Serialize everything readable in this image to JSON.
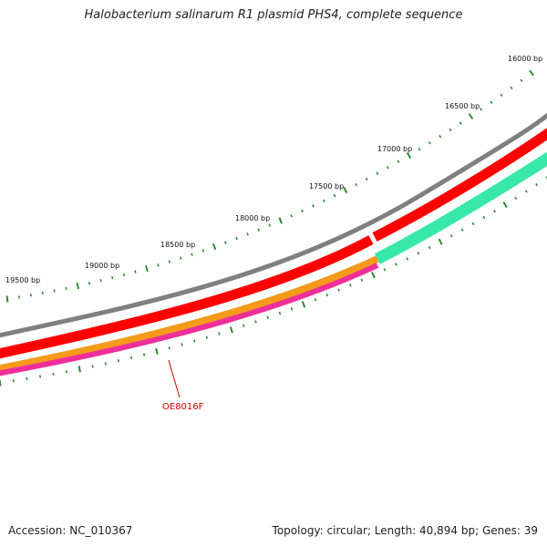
{
  "title": "Halobacterium salinarum R1 plasmid PHS4, complete sequence",
  "footer": {
    "accession": "Accession: NC_010367",
    "summary": "Topology: circular; Length: 40,894 bp; Genes: 39"
  },
  "map": {
    "topology": "circular",
    "length_bp": 40894,
    "gene_count": 39,
    "tick_labels": [
      "16000 bp",
      "16500 bp",
      "17000 bp",
      "17500 bp",
      "18000 bp",
      "18500 bp",
      "19000 bp",
      "19500 bp"
    ],
    "gene_labels": [
      {
        "text": "OE8016F",
        "color": "#cc0000"
      }
    ],
    "colors": {
      "backbone": "#808080",
      "forward_cds": "#ff0000",
      "orange_feature": "#f59a1a",
      "magenta_feature": "#ee2f9a",
      "teal_feature": "#38e8a8",
      "ticks": "#2e8b2e",
      "gene_label": "#cc0000"
    }
  }
}
